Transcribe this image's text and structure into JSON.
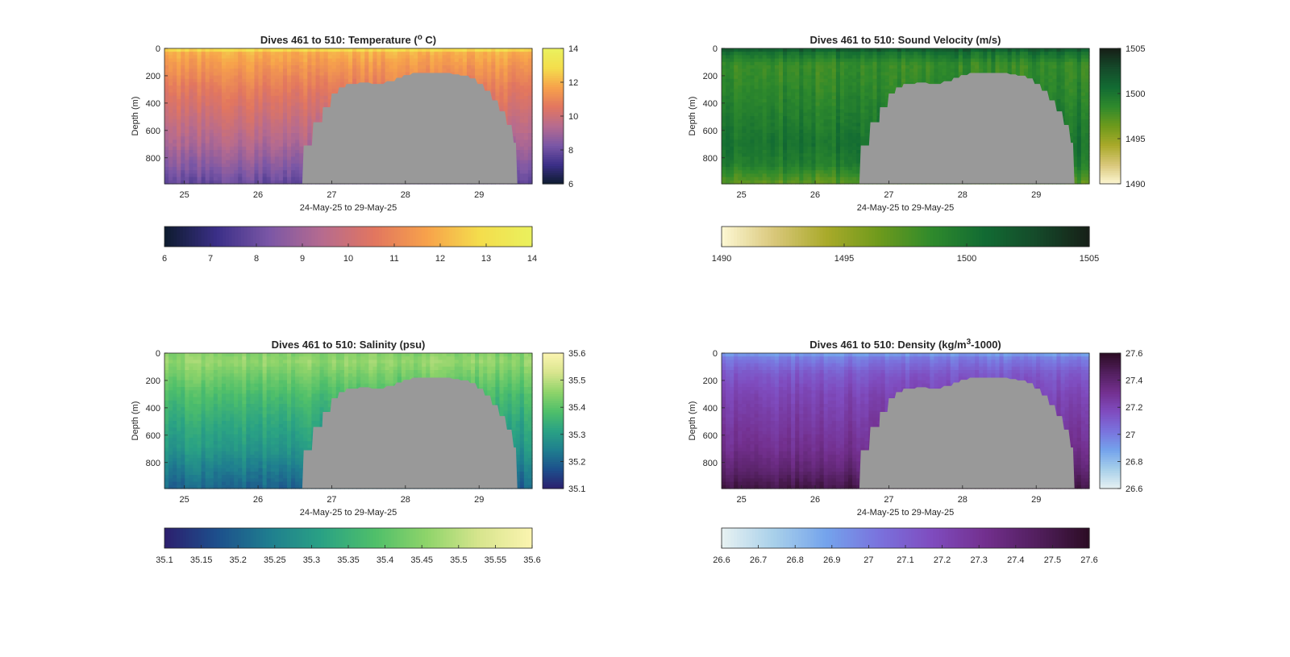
{
  "chart_data": [
    {
      "id": "temperature",
      "type": "heatmap",
      "title_prefix": "Dives 461 to 510: Temperature (",
      "title_sup": "o",
      "title_suffix": " C)",
      "xlabel": "24-May-25 to 29-May-25",
      "ylabel": "Depth (m)",
      "xlim": [
        24.73,
        29.72
      ],
      "ylim": [
        0,
        990
      ],
      "x_ticks": [
        25,
        26,
        27,
        28,
        29
      ],
      "y_ticks": [
        0,
        200,
        400,
        600,
        800
      ],
      "clim": [
        6,
        14
      ],
      "colormap": [
        "#0d1b2e",
        "#3b2f88",
        "#7b57a6",
        "#b66b8f",
        "#e2765f",
        "#f7a24b",
        "#f4dd4c",
        "#eaf15e"
      ],
      "colorbar_ticks": [
        6,
        8,
        10,
        12,
        14
      ],
      "horizontal_colorbar_ticks": [
        6,
        7,
        8,
        9,
        10,
        11,
        12,
        13,
        14
      ],
      "depth_gradient": [
        [
          0,
          13.6
        ],
        [
          25,
          12.0
        ],
        [
          120,
          11.5
        ],
        [
          300,
          10.7
        ],
        [
          500,
          10.0
        ],
        [
          700,
          9.3
        ],
        [
          850,
          8.6
        ],
        [
          990,
          7.9
        ]
      ],
      "column_noise": 0.35
    },
    {
      "id": "sound-velocity",
      "type": "heatmap",
      "title_prefix": "Dives 461 to 510: Sound Velocity (m/s)",
      "title_sup": "",
      "title_suffix": "",
      "xlabel": "24-May-25 to 29-May-25",
      "ylabel": "Depth (m)",
      "xlim": [
        24.73,
        29.72
      ],
      "ylim": [
        0,
        990
      ],
      "x_ticks": [
        25,
        26,
        27,
        28,
        29
      ],
      "y_ticks": [
        0,
        200,
        400,
        600,
        800
      ],
      "clim": [
        1490,
        1505
      ],
      "colormap": [
        "#fdf8d4",
        "#d9c77a",
        "#a9aa2a",
        "#6e9a1c",
        "#2f8a2c",
        "#126b33",
        "#154a2a",
        "#161f17"
      ],
      "colorbar_ticks": [
        1490,
        1495,
        1500,
        1505
      ],
      "horizontal_colorbar_ticks": [
        1490,
        1495,
        1500,
        1505
      ],
      "depth_gradient": [
        [
          0,
          1502.6
        ],
        [
          25,
          1500.5
        ],
        [
          120,
          1498.3
        ],
        [
          300,
          1498.8
        ],
        [
          500,
          1499.5
        ],
        [
          700,
          1500.2
        ],
        [
          850,
          1499.5
        ],
        [
          990,
          1497.0
        ]
      ],
      "column_noise": 0.9
    },
    {
      "id": "salinity",
      "type": "heatmap",
      "title_prefix": "Dives 461 to 510: Salinity (psu)",
      "title_sup": "",
      "title_suffix": "",
      "xlabel": "24-May-25 to 29-May-25",
      "ylabel": "Depth (m)",
      "xlim": [
        24.73,
        29.72
      ],
      "ylim": [
        0,
        990
      ],
      "x_ticks": [
        25,
        26,
        27,
        28,
        29
      ],
      "y_ticks": [
        0,
        200,
        400,
        600,
        800
      ],
      "clim": [
        35.1,
        35.6
      ],
      "colormap": [
        "#2c1f6e",
        "#1d4f8c",
        "#1f7e8f",
        "#2aa284",
        "#4fbf6a",
        "#8fd46a",
        "#d8e58e",
        "#fbf4b0"
      ],
      "colorbar_ticks": [
        35.1,
        35.2,
        35.3,
        35.4,
        35.5,
        35.6
      ],
      "horizontal_colorbar_ticks": [
        35.1,
        35.15,
        35.2,
        35.25,
        35.3,
        35.35,
        35.4,
        35.45,
        35.5,
        35.55,
        35.6
      ],
      "depth_gradient": [
        [
          0,
          35.44
        ],
        [
          60,
          35.46
        ],
        [
          150,
          35.43
        ],
        [
          300,
          35.38
        ],
        [
          500,
          35.33
        ],
        [
          700,
          35.29
        ],
        [
          850,
          35.24
        ],
        [
          990,
          35.2
        ]
      ],
      "column_noise": 0.025
    },
    {
      "id": "density",
      "type": "heatmap",
      "title_prefix": "Dives 461 to 510: Density (kg/m",
      "title_sup": "3",
      "title_suffix": "-1000)",
      "xlabel": "24-May-25 to 29-May-25",
      "ylabel": "Depth (m)",
      "xlim": [
        24.73,
        29.72
      ],
      "ylim": [
        0,
        990
      ],
      "x_ticks": [
        25,
        26,
        27,
        28,
        29
      ],
      "y_ticks": [
        0,
        200,
        400,
        600,
        800
      ],
      "clim": [
        26.6,
        27.6
      ],
      "colormap": [
        "#e8f2f2",
        "#a8d0ea",
        "#74a3ec",
        "#7a72dd",
        "#7f4cbf",
        "#73308f",
        "#521f5e",
        "#2c0c24"
      ],
      "colorbar_ticks": [
        26.6,
        26.8,
        27,
        27.2,
        27.4,
        27.6
      ],
      "horizontal_colorbar_ticks": [
        26.6,
        26.7,
        26.8,
        26.9,
        27,
        27.1,
        27.2,
        27.3,
        27.4,
        27.5,
        27.6
      ],
      "depth_gradient": [
        [
          0,
          26.88
        ],
        [
          40,
          27.0
        ],
        [
          150,
          27.12
        ],
        [
          300,
          27.2
        ],
        [
          500,
          27.26
        ],
        [
          700,
          27.32
        ],
        [
          850,
          27.4
        ],
        [
          990,
          27.52
        ]
      ],
      "column_noise": 0.04
    }
  ],
  "seafloor": {
    "color": "#999999",
    "profile": [
      [
        26.6,
        990
      ],
      [
        26.62,
        710
      ],
      [
        26.73,
        710
      ],
      [
        26.75,
        540
      ],
      [
        26.87,
        540
      ],
      [
        26.88,
        430
      ],
      [
        26.98,
        430
      ],
      [
        27.0,
        330
      ],
      [
        27.08,
        330
      ],
      [
        27.1,
        285
      ],
      [
        27.18,
        285
      ],
      [
        27.2,
        260
      ],
      [
        27.35,
        260
      ],
      [
        27.38,
        250
      ],
      [
        27.5,
        250
      ],
      [
        27.55,
        260
      ],
      [
        27.7,
        260
      ],
      [
        27.75,
        240
      ],
      [
        27.85,
        240
      ],
      [
        27.88,
        215
      ],
      [
        27.95,
        215
      ],
      [
        27.98,
        195
      ],
      [
        28.06,
        195
      ],
      [
        28.1,
        180
      ],
      [
        28.6,
        180
      ],
      [
        28.65,
        190
      ],
      [
        28.72,
        190
      ],
      [
        28.75,
        200
      ],
      [
        28.85,
        200
      ],
      [
        28.88,
        220
      ],
      [
        28.95,
        220
      ],
      [
        28.98,
        260
      ],
      [
        29.05,
        260
      ],
      [
        29.08,
        310
      ],
      [
        29.15,
        310
      ],
      [
        29.18,
        380
      ],
      [
        29.25,
        380
      ],
      [
        29.28,
        460
      ],
      [
        29.35,
        460
      ],
      [
        29.38,
        560
      ],
      [
        29.44,
        560
      ],
      [
        29.47,
        690
      ],
      [
        29.5,
        690
      ],
      [
        29.52,
        990
      ]
    ]
  }
}
